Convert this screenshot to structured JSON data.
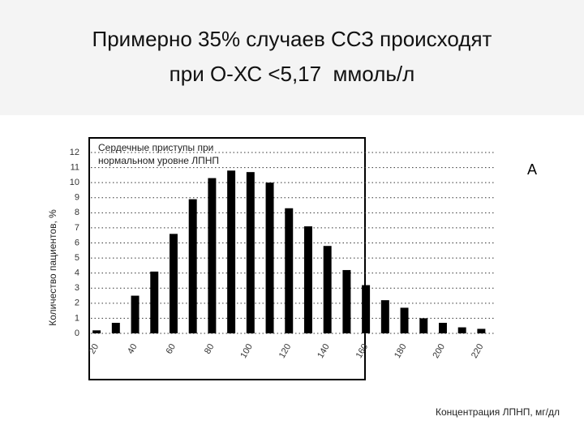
{
  "chart_data": {
    "type": "bar",
    "title": [
      "Примерно 35% случаев ССЗ происходят",
      "при О-ХС <5,17  ммоль/л"
    ],
    "annotation": [
      "Сердечные приступы при",
      "нормальном уровне ЛПНП"
    ],
    "panel_label": "A",
    "y_label": "Количество пациентов, %",
    "x_label": "Концентрация ЛПНП, мг/дл",
    "x": [
      20,
      30,
      40,
      50,
      60,
      70,
      80,
      90,
      100,
      110,
      120,
      130,
      140,
      150,
      160,
      170,
      180,
      190,
      200,
      210,
      220
    ],
    "values": [
      0.2,
      0.7,
      2.5,
      4.1,
      6.6,
      8.9,
      10.3,
      10.8,
      10.7,
      10.0,
      8.3,
      7.1,
      5.8,
      4.2,
      3.2,
      2.2,
      1.7,
      1.0,
      0.7,
      0.4,
      0.3
    ],
    "color": "#000000",
    "xlim": [
      17,
      227
    ],
    "xticks": [
      20,
      40,
      60,
      80,
      100,
      120,
      140,
      160,
      180,
      200,
      220
    ],
    "ylim": [
      0,
      12
    ],
    "yticks": [
      0,
      1,
      2,
      3,
      4,
      5,
      6,
      7,
      8,
      9,
      10,
      11,
      12
    ],
    "grid": true
  }
}
